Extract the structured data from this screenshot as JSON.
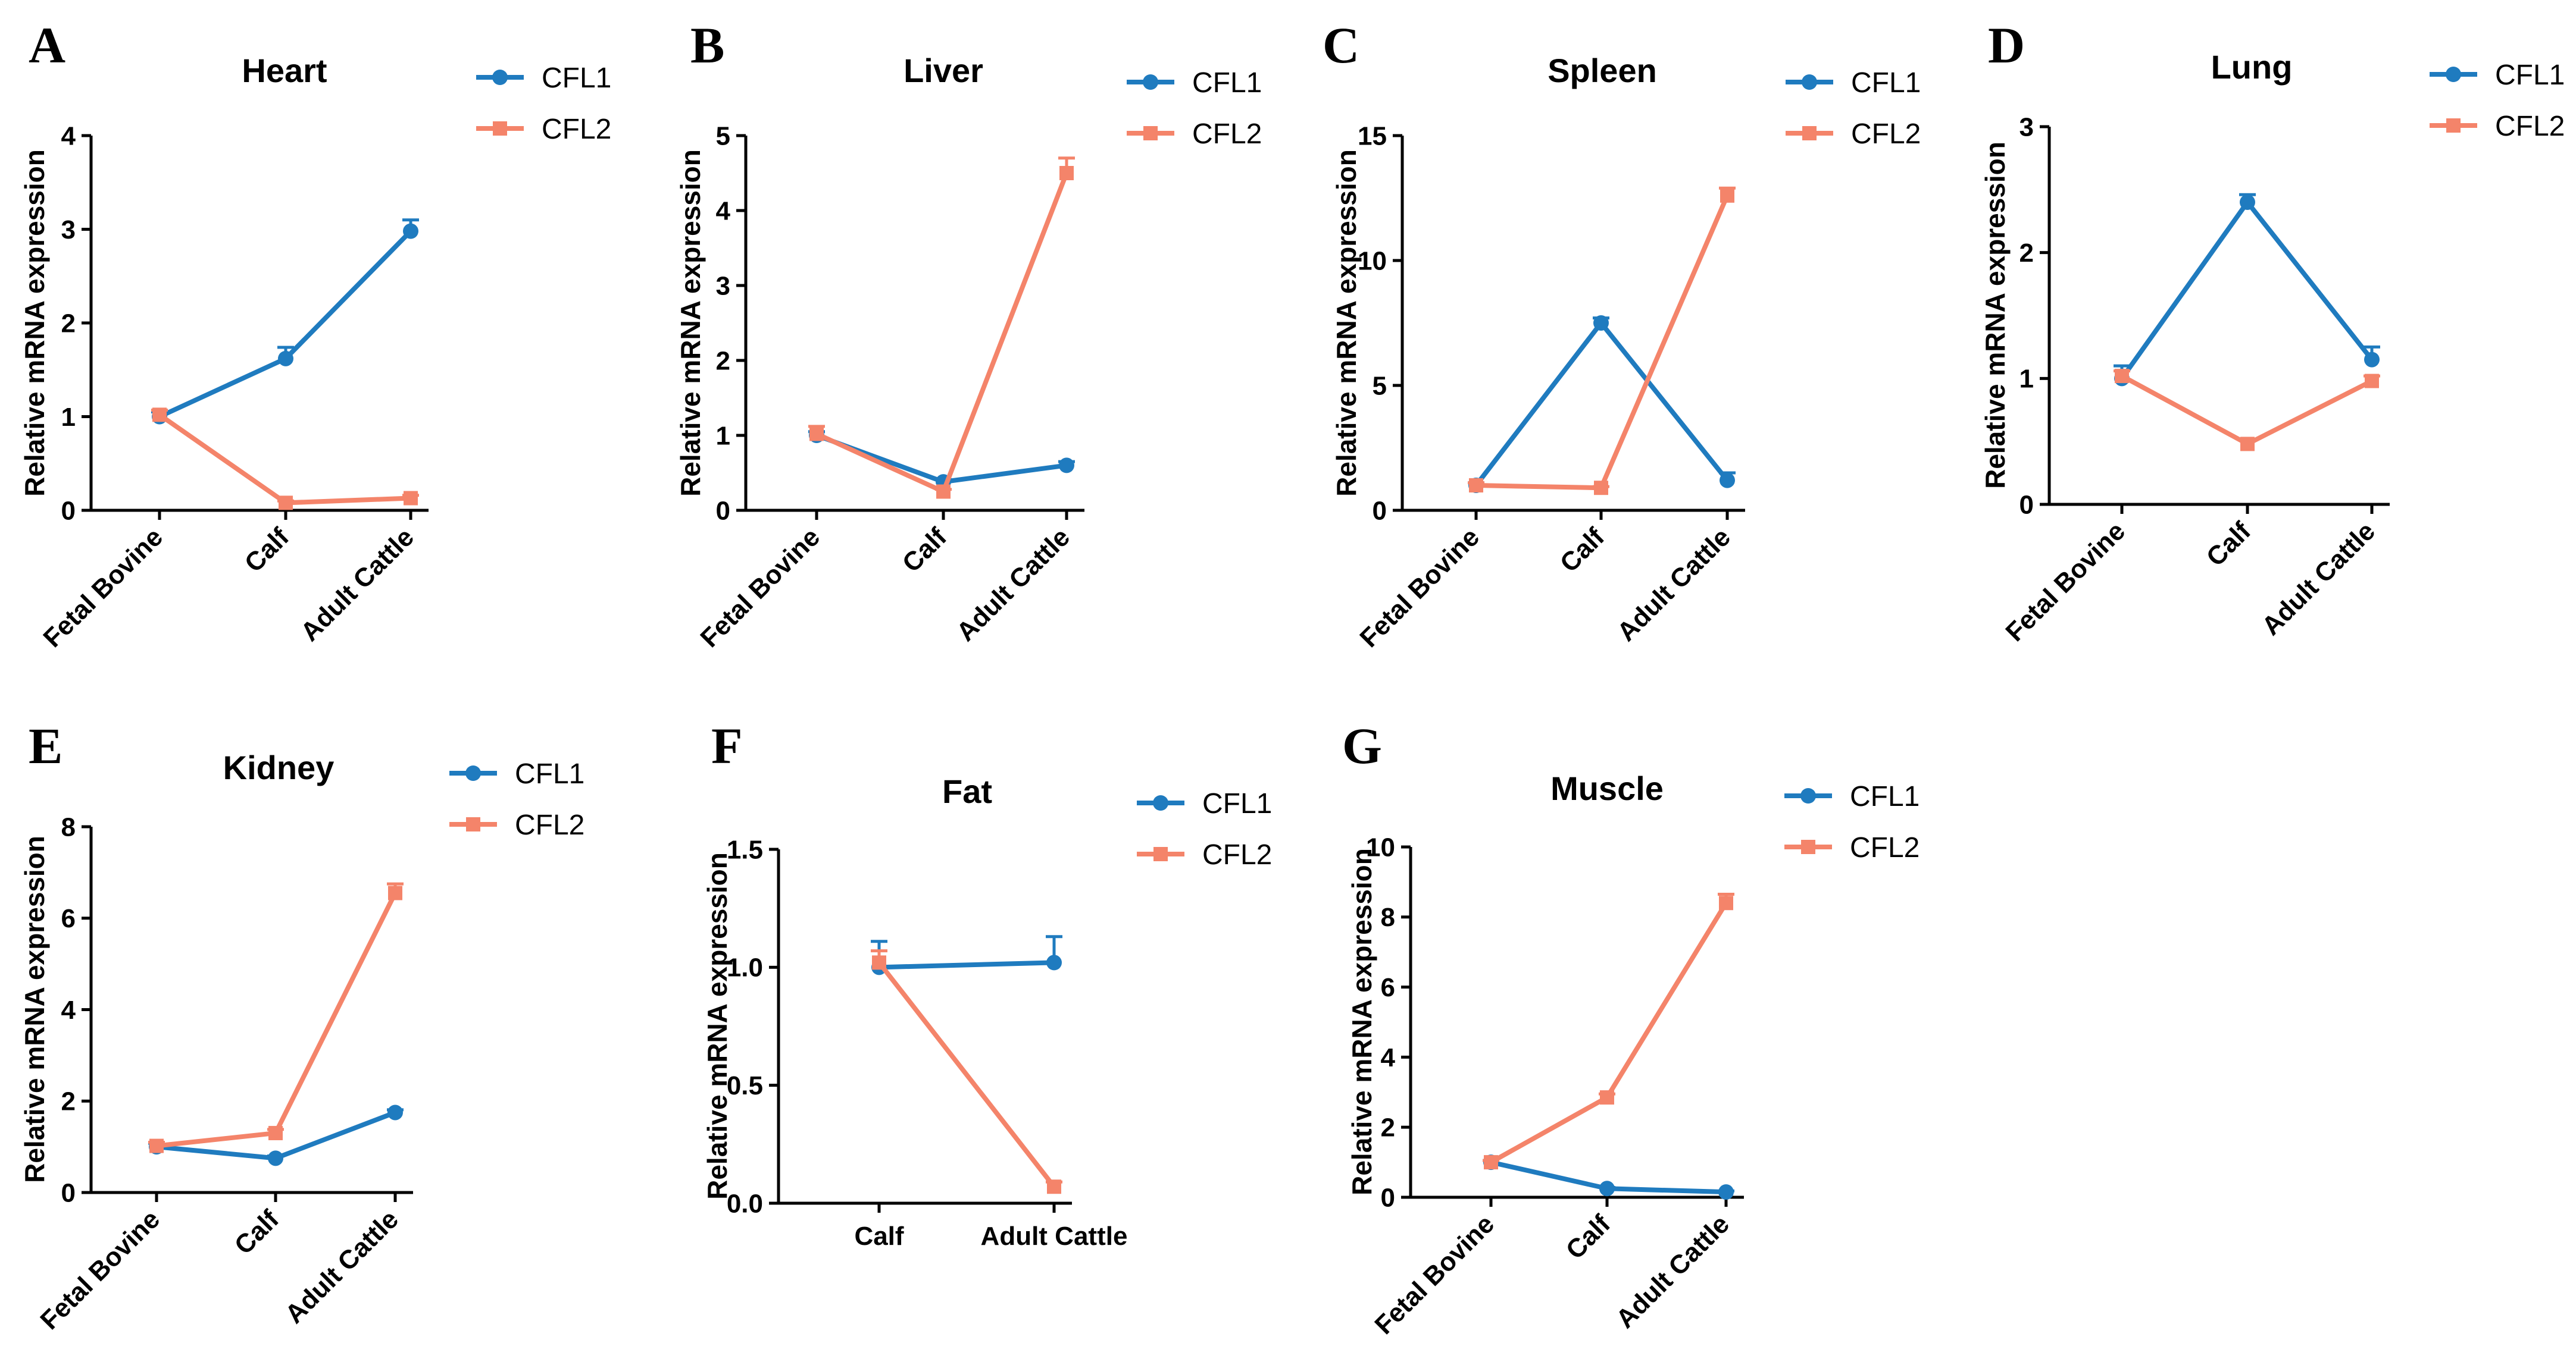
{
  "colors": {
    "CFL1": "#1f7bbf",
    "CFL2": "#f4846a"
  },
  "chart_data": [
    {
      "type": "line",
      "panel": "A",
      "title": "Heart",
      "xlabel": "",
      "ylabel": "Relative mRNA expression",
      "categories": [
        "Fetal Bovine",
        "Calf",
        "Adult Cattle"
      ],
      "ylim": [
        0,
        4
      ],
      "yticks": [
        0,
        1,
        2,
        3,
        4
      ],
      "ytick_labels": [
        "0",
        "1",
        "2",
        "3",
        "4"
      ],
      "legend": [
        "CFL1",
        "CFL2"
      ],
      "legend_position": "top-right",
      "series": [
        {
          "name": "CFL1",
          "values": [
            1.0,
            1.62,
            2.98
          ],
          "errors": [
            0.05,
            0.12,
            0.12
          ]
        },
        {
          "name": "CFL2",
          "values": [
            1.02,
            0.08,
            0.13
          ],
          "errors": [
            0.05,
            0.02,
            0.03
          ]
        }
      ]
    },
    {
      "type": "line",
      "panel": "B",
      "title": "Liver",
      "xlabel": "",
      "ylabel": "Relative mRNA expression",
      "categories": [
        "Fetal Bovine",
        "Calf",
        "Adult Cattle"
      ],
      "ylim": [
        0,
        5
      ],
      "yticks": [
        0,
        1,
        2,
        3,
        4,
        5
      ],
      "ytick_labels": [
        "0",
        "1",
        "2",
        "3",
        "4",
        "5"
      ],
      "legend": [
        "CFL1",
        "CFL2"
      ],
      "legend_position": "top-right",
      "series": [
        {
          "name": "CFL1",
          "values": [
            1.0,
            0.38,
            0.6
          ],
          "errors": [
            0.05,
            0.03,
            0.05
          ]
        },
        {
          "name": "CFL2",
          "values": [
            1.02,
            0.25,
            4.5
          ],
          "errors": [
            0.1,
            0.03,
            0.2
          ]
        }
      ]
    },
    {
      "type": "line",
      "panel": "C",
      "title": "Spleen",
      "xlabel": "",
      "ylabel": "Relative mRNA expression",
      "categories": [
        "Fetal Bovine",
        "Calf",
        "Adult Cattle"
      ],
      "ylim": [
        0,
        15
      ],
      "yticks": [
        0,
        5,
        10,
        15
      ],
      "ytick_labels": [
        "0",
        "5",
        "10",
        "15"
      ],
      "legend": [
        "CFL1",
        "CFL2"
      ],
      "legend_position": "top-right",
      "series": [
        {
          "name": "CFL1",
          "values": [
            1.0,
            7.5,
            1.2
          ],
          "errors": [
            0.1,
            0.2,
            0.3
          ]
        },
        {
          "name": "CFL2",
          "values": [
            1.0,
            0.9,
            12.6
          ],
          "errors": [
            0.1,
            0.05,
            0.3
          ]
        }
      ]
    },
    {
      "type": "line",
      "panel": "D",
      "title": "Lung",
      "xlabel": "",
      "ylabel": "Relative mRNA expression",
      "categories": [
        "Fetal Bovine",
        "Calf",
        "Adult Cattle"
      ],
      "ylim": [
        0,
        3
      ],
      "yticks": [
        0,
        1,
        2,
        3
      ],
      "ytick_labels": [
        "0",
        "1",
        "2",
        "3"
      ],
      "legend": [
        "CFL1",
        "CFL2"
      ],
      "legend_position": "top-right",
      "series": [
        {
          "name": "CFL1",
          "values": [
            1.0,
            2.4,
            1.15
          ],
          "errors": [
            0.1,
            0.06,
            0.1
          ]
        },
        {
          "name": "CFL2",
          "values": [
            1.02,
            0.48,
            0.98
          ],
          "errors": [
            0.04,
            0.03,
            0.04
          ]
        }
      ]
    },
    {
      "type": "line",
      "panel": "E",
      "title": "Kidney",
      "xlabel": "",
      "ylabel": "Relative mRNA expression",
      "categories": [
        "Fetal Bovine",
        "Calf",
        "Adult Cattle"
      ],
      "ylim": [
        0,
        8
      ],
      "yticks": [
        0,
        2,
        4,
        6,
        8
      ],
      "ytick_labels": [
        "0",
        "2",
        "4",
        "6",
        "8"
      ],
      "legend": [
        "CFL1",
        "CFL2"
      ],
      "legend_position": "top-right",
      "series": [
        {
          "name": "CFL1",
          "values": [
            1.0,
            0.75,
            1.75
          ],
          "errors": [
            0.08,
            0.05,
            0.06
          ]
        },
        {
          "name": "CFL2",
          "values": [
            1.02,
            1.3,
            6.55
          ],
          "errors": [
            0.08,
            0.08,
            0.2
          ]
        }
      ]
    },
    {
      "type": "line",
      "panel": "F",
      "title": "Fat",
      "xlabel": "",
      "ylabel": "Relative mRNA expression",
      "categories": [
        "Calf",
        "Adult Cattle"
      ],
      "ylim": [
        0,
        1.5
      ],
      "yticks": [
        0,
        0.5,
        1.0,
        1.5
      ],
      "ytick_labels": [
        "0.0",
        "0.5",
        "1.0",
        "1.5"
      ],
      "legend": [
        "CFL1",
        "CFL2"
      ],
      "legend_position": "top-right",
      "series": [
        {
          "name": "CFL1",
          "values": [
            1.0,
            1.02
          ],
          "errors": [
            0.11,
            0.11
          ]
        },
        {
          "name": "CFL2",
          "values": [
            1.02,
            0.07
          ],
          "errors": [
            0.05,
            0.02
          ]
        }
      ]
    },
    {
      "type": "line",
      "panel": "G",
      "title": "Muscle",
      "xlabel": "",
      "ylabel": "Relative mRNA expression",
      "categories": [
        "Fetal Bovine",
        "Calf",
        "Adult Cattle"
      ],
      "ylim": [
        0,
        10
      ],
      "yticks": [
        0,
        2,
        4,
        6,
        8,
        10
      ],
      "ytick_labels": [
        "0",
        "2",
        "4",
        "6",
        "8",
        "10"
      ],
      "legend": [
        "CFL1",
        "CFL2"
      ],
      "legend_position": "top-right",
      "series": [
        {
          "name": "CFL1",
          "values": [
            1.0,
            0.25,
            0.15
          ],
          "errors": [
            0.05,
            0.03,
            0.03
          ]
        },
        {
          "name": "CFL2",
          "values": [
            1.0,
            2.85,
            8.4
          ],
          "errors": [
            0.05,
            0.1,
            0.25
          ]
        }
      ]
    }
  ]
}
